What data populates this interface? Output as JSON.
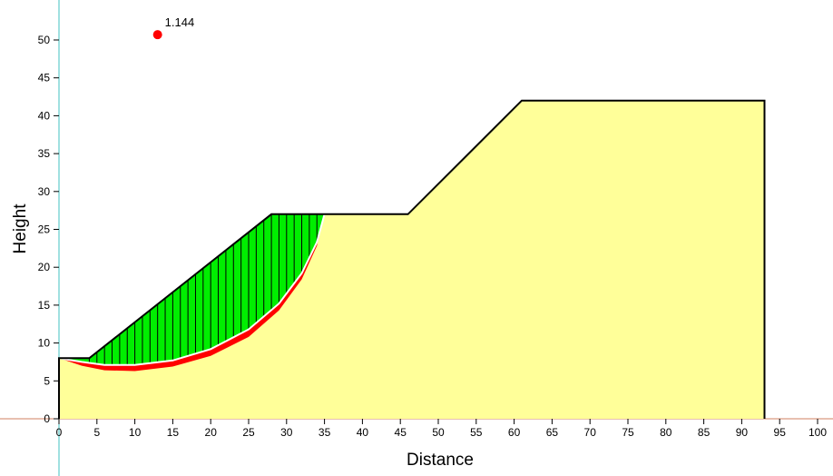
{
  "chart_data": {
    "type": "slope-stability-section",
    "xlabel": "Distance",
    "ylabel": "Height",
    "xlim": [
      0,
      100
    ],
    "ylim": [
      0,
      50
    ],
    "x_ticks": [
      0,
      5,
      10,
      15,
      20,
      25,
      30,
      35,
      40,
      45,
      50,
      55,
      60,
      65,
      70,
      75,
      80,
      85,
      90,
      95,
      100
    ],
    "y_ticks": [
      0,
      5,
      10,
      15,
      20,
      25,
      30,
      35,
      40,
      45,
      50
    ],
    "ground_profile": [
      [
        0,
        0
      ],
      [
        0,
        8
      ],
      [
        4,
        8
      ],
      [
        28,
        27
      ],
      [
        46,
        27
      ],
      [
        61,
        42
      ],
      [
        93,
        42
      ],
      [
        93,
        0
      ]
    ],
    "critical_slip_surface": [
      [
        0,
        8
      ],
      [
        3,
        7.5
      ],
      [
        6,
        7.1
      ],
      [
        10,
        7.1
      ],
      [
        15,
        7.7
      ],
      [
        20,
        9.2
      ],
      [
        25,
        11.8
      ],
      [
        29,
        15.2
      ],
      [
        32,
        19.2
      ],
      [
        34,
        23.3
      ],
      [
        35,
        27
      ]
    ],
    "lower_slip_surface": [
      [
        0,
        8
      ],
      [
        3,
        7
      ],
      [
        6,
        6.4
      ],
      [
        10,
        6.3
      ],
      [
        15,
        6.9
      ],
      [
        20,
        8.3
      ],
      [
        25,
        10.8
      ],
      [
        29,
        14.3
      ],
      [
        32,
        18.4
      ],
      [
        34,
        22.8
      ],
      [
        35,
        27
      ]
    ],
    "slice_count": 31,
    "center_point": {
      "x": 13,
      "y": 50.7
    },
    "factor_of_safety": "1.144",
    "colors": {
      "soil": "#ffff99",
      "sliding_mass": "#00ee00",
      "slip_band": "#ff0000",
      "center": "#ff0000",
      "axis": "#40c0c0",
      "x_axis_line": "#d08060"
    }
  }
}
